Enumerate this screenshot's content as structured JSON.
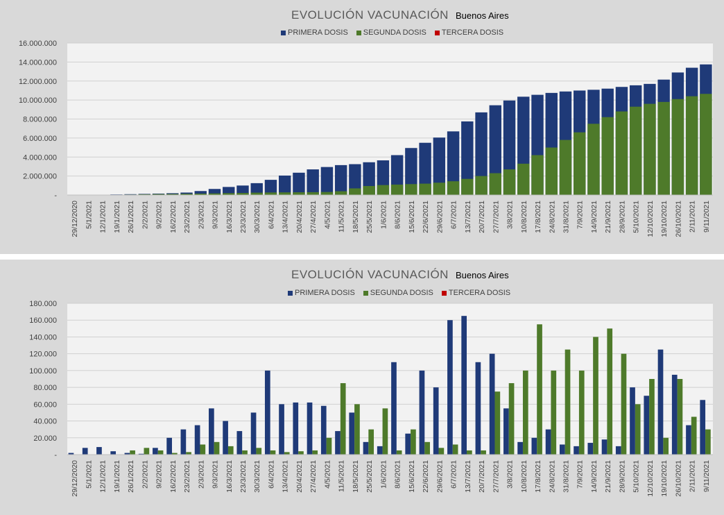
{
  "colors": {
    "primera": "#1f3a78",
    "segunda": "#4e7a2a",
    "tercera": "#c00000",
    "plot_bg": "#f2f2f2",
    "panel_bg": "#d9d9d9"
  },
  "x_ticks": [
    "29/12/2020",
    "5/1/2021",
    "12/1/2021",
    "19/1/2021",
    "26/1/2021",
    "2/2/2021",
    "9/2/2021",
    "16/2/2021",
    "23/2/2021",
    "2/3/2021",
    "9/3/2021",
    "16/3/2021",
    "23/3/2021",
    "30/3/2021",
    "6/4/2021",
    "13/4/2021",
    "20/4/2021",
    "27/4/2021",
    "4/5/2021",
    "11/5/2021",
    "18/5/2021",
    "25/5/2021",
    "1/6/2021",
    "8/6/2021",
    "15/6/2021",
    "22/6/2021",
    "29/6/2021",
    "6/7/2021",
    "13/7/2021",
    "20/7/2021",
    "27/7/2021",
    "3/8/2021",
    "10/8/2021",
    "17/8/2021",
    "24/8/2021",
    "31/8/2021",
    "7/9/2021",
    "14/9/2021",
    "21/9/2021",
    "28/9/2021",
    "5/10/2021",
    "12/10/2021",
    "19/10/2021",
    "26/10/2021",
    "2/11/2021",
    "9/11/2021"
  ],
  "chart_data": [
    {
      "type": "bar",
      "title": "EVOLUCIÓN VACUNACIÓN",
      "subtitle": "Buenos Aires",
      "legend": [
        "PRIMERA DOSIS",
        "SEGUNDA DOSIS",
        "TERCERA DOSIS"
      ],
      "legend_position": "top",
      "y_tick_labels": [
        "-",
        "2.000.000",
        "4.000.000",
        "6.000.000",
        "8.000.000",
        "10.000.000",
        "12.000.000",
        "14.000.000",
        "16.000.000"
      ],
      "ylim": [
        0,
        16000000
      ],
      "grid": true,
      "weekly_dates": [
        "29/12/2020",
        "5/1/2021",
        "12/1/2021",
        "19/1/2021",
        "26/1/2021",
        "2/2/2021",
        "9/2/2021",
        "16/2/2021",
        "23/2/2021",
        "2/3/2021",
        "9/3/2021",
        "16/3/2021",
        "23/3/2021",
        "30/3/2021",
        "6/4/2021",
        "13/4/2021",
        "20/4/2021",
        "27/4/2021",
        "4/5/2021",
        "11/5/2021",
        "18/5/2021",
        "25/5/2021",
        "1/6/2021",
        "8/6/2021",
        "15/6/2021",
        "22/6/2021",
        "29/6/2021",
        "6/7/2021",
        "13/7/2021",
        "20/7/2021",
        "27/7/2021",
        "3/8/2021",
        "10/8/2021",
        "17/8/2021",
        "24/8/2021",
        "31/8/2021",
        "7/9/2021",
        "14/9/2021",
        "21/9/2021",
        "28/9/2021",
        "5/10/2021",
        "12/10/2021",
        "19/10/2021",
        "26/10/2021",
        "2/11/2021",
        "9/11/2021"
      ],
      "series": [
        {
          "name": "PRIMERA DOSIS",
          "values": [
            5000,
            10000,
            30000,
            60000,
            90000,
            120000,
            150000,
            190000,
            260000,
            420000,
            640000,
            850000,
            1000000,
            1250000,
            1600000,
            2050000,
            2350000,
            2700000,
            2950000,
            3150000,
            3250000,
            3450000,
            3650000,
            4200000,
            4950000,
            5500000,
            6050000,
            6700000,
            7750000,
            8700000,
            9450000,
            9950000,
            10350000,
            10550000,
            10750000,
            10900000,
            11000000,
            11080000,
            11200000,
            11380000,
            11550000,
            11700000,
            12150000,
            12900000,
            13400000,
            13750000
          ]
        },
        {
          "name": "SEGUNDA DOSIS",
          "values": [
            0,
            0,
            10000,
            30000,
            50000,
            80000,
            100000,
            110000,
            130000,
            150000,
            170000,
            200000,
            220000,
            250000,
            270000,
            280000,
            290000,
            300000,
            320000,
            400000,
            700000,
            950000,
            1050000,
            1100000,
            1150000,
            1200000,
            1300000,
            1450000,
            1700000,
            2000000,
            2300000,
            2700000,
            3300000,
            4200000,
            5000000,
            5800000,
            6600000,
            7500000,
            8200000,
            8800000,
            9300000,
            9600000,
            9800000,
            10100000,
            10400000,
            10650000
          ]
        },
        {
          "name": "TERCERA DOSIS",
          "values": [
            0,
            0,
            0,
            0,
            0,
            0,
            0,
            0,
            0,
            0,
            0,
            0,
            0,
            0,
            0,
            0,
            0,
            0,
            0,
            0,
            0,
            0,
            0,
            0,
            0,
            0,
            0,
            0,
            0,
            0,
            0,
            0,
            0,
            0,
            0,
            0,
            0,
            0,
            0,
            0,
            0,
            0,
            0,
            0,
            0,
            0
          ]
        }
      ]
    },
    {
      "type": "bar",
      "title": "EVOLUCIÓN VACUNACIÓN",
      "subtitle": "Buenos Aires",
      "legend": [
        "PRIMERA DOSIS",
        "SEGUNDA DOSIS",
        "TERCERA DOSIS"
      ],
      "legend_position": "top",
      "y_tick_labels": [
        "-",
        "20.000",
        "40.000",
        "60.000",
        "80.000",
        "100.000",
        "120.000",
        "140.000",
        "160.000",
        "180.000"
      ],
      "ylim": [
        0,
        180000
      ],
      "grid": true,
      "weekly_dates": [
        "29/12/2020",
        "5/1/2021",
        "12/1/2021",
        "19/1/2021",
        "26/1/2021",
        "2/2/2021",
        "9/2/2021",
        "16/2/2021",
        "23/2/2021",
        "2/3/2021",
        "9/3/2021",
        "16/3/2021",
        "23/3/2021",
        "30/3/2021",
        "6/4/2021",
        "13/4/2021",
        "20/4/2021",
        "27/4/2021",
        "4/5/2021",
        "11/5/2021",
        "18/5/2021",
        "25/5/2021",
        "1/6/2021",
        "8/6/2021",
        "15/6/2021",
        "22/6/2021",
        "29/6/2021",
        "6/7/2021",
        "13/7/2021",
        "20/7/2021",
        "27/7/2021",
        "3/8/2021",
        "10/8/2021",
        "17/8/2021",
        "24/8/2021",
        "31/8/2021",
        "7/9/2021",
        "14/9/2021",
        "21/9/2021",
        "28/9/2021",
        "5/10/2021",
        "12/10/2021",
        "19/10/2021",
        "26/10/2021",
        "2/11/2021",
        "9/11/2021"
      ],
      "series": [
        {
          "name": "PRIMERA DOSIS",
          "values": [
            2000,
            8000,
            9000,
            4000,
            2000,
            1000,
            8000,
            20000,
            30000,
            35000,
            55000,
            40000,
            28000,
            50000,
            100000,
            60000,
            62000,
            62000,
            58000,
            28000,
            50000,
            15000,
            10000,
            110000,
            25000,
            100000,
            80000,
            160000,
            165000,
            110000,
            120000,
            55000,
            15000,
            20000,
            30000,
            12000,
            10000,
            14000,
            18000,
            10000,
            80000,
            70000,
            125000,
            95000,
            35000,
            65000
          ]
        },
        {
          "name": "SEGUNDA DOSIS",
          "values": [
            0,
            0,
            0,
            0,
            5000,
            8000,
            5000,
            2000,
            3000,
            12000,
            15000,
            10000,
            5000,
            8000,
            5000,
            3000,
            4000,
            5000,
            20000,
            85000,
            60000,
            30000,
            55000,
            5000,
            30000,
            15000,
            8000,
            12000,
            5000,
            5000,
            75000,
            85000,
            100000,
            155000,
            100000,
            125000,
            100000,
            140000,
            150000,
            120000,
            60000,
            90000,
            20000,
            90000,
            45000,
            30000
          ]
        },
        {
          "name": "TERCERA DOSIS",
          "values": [
            0,
            0,
            0,
            0,
            0,
            0,
            0,
            0,
            0,
            0,
            0,
            0,
            0,
            0,
            0,
            0,
            0,
            0,
            0,
            0,
            0,
            0,
            0,
            0,
            0,
            0,
            0,
            0,
            0,
            0,
            0,
            0,
            0,
            0,
            0,
            0,
            0,
            0,
            0,
            0,
            0,
            0,
            0,
            0,
            0,
            0
          ]
        }
      ]
    }
  ]
}
